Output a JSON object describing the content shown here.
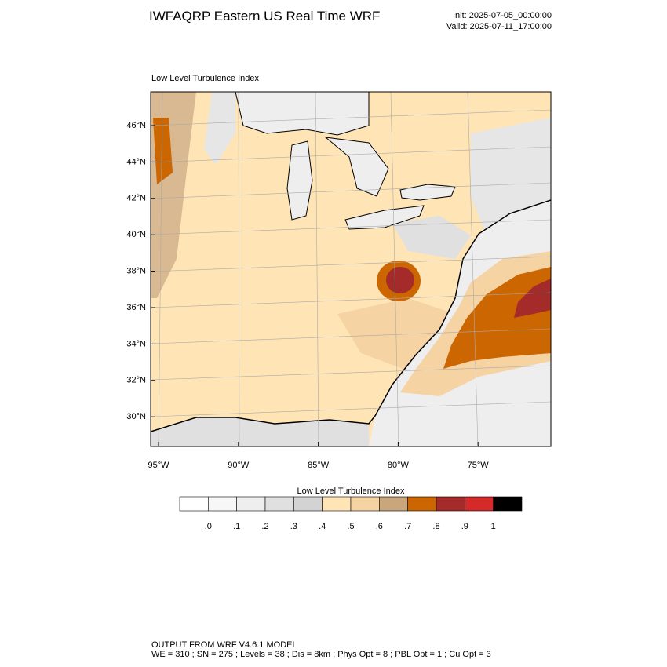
{
  "header": {
    "title": "IWFAQRP Eastern US Real Time WRF",
    "init": "Init: 2025-07-05_00:00:00",
    "valid": "Valid: 2025-07-11_17:00:00"
  },
  "map": {
    "subtitle": "Low Level Turbulence Index",
    "lat_labels": [
      "46°N",
      "44°N",
      "42°N",
      "40°N",
      "38°N",
      "36°N",
      "34°N",
      "32°N",
      "30°N"
    ],
    "lon_labels": [
      "95°W",
      "90°W",
      "85°W",
      "80°W",
      "75°W"
    ]
  },
  "colorbar": {
    "title": "Low Level Turbulence Index",
    "colors": [
      "#ffffff",
      "#f7f7f7",
      "#eeeeee",
      "#e0e0e0",
      "#d3d3d3",
      "#ffe4b5",
      "#f5d3a3",
      "#c9a67c",
      "#cc6600",
      "#a52a2a",
      "#d42a2a",
      "#000000"
    ],
    "labels": [
      ".0",
      ".1",
      ".2",
      ".3",
      ".4",
      ".5",
      ".6",
      ".7",
      ".8",
      ".9",
      "1"
    ]
  },
  "footer": {
    "line1": "OUTPUT FROM WRF V4.6.1 MODEL",
    "line2": "WE = 310 ; SN = 275 ; Levels = 38 ; Dis = 8km ; Phys Opt = 8 ; PBL Opt = 1 ; Cu Opt = 3"
  }
}
